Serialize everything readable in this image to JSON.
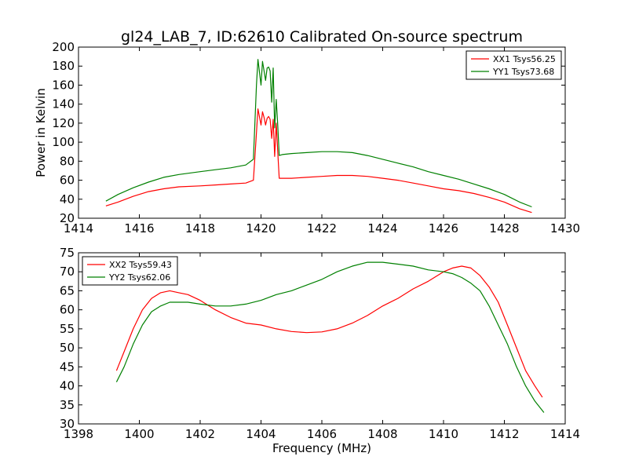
{
  "title": "gl24_LAB_7, ID:62610 Calibrated On-source spectrum",
  "chart_data": [
    {
      "type": "line",
      "xlabel": "",
      "ylabel": "Power in Kelvin",
      "xlim": [
        1414,
        1430
      ],
      "ylim": [
        20,
        200
      ],
      "xticks": [
        "1414",
        "1416",
        "1418",
        "1420",
        "1422",
        "1424",
        "1426",
        "1428",
        "1430"
      ],
      "yticks": [
        "20",
        "40",
        "60",
        "80",
        "100",
        "120",
        "140",
        "160",
        "180",
        "200"
      ],
      "grid": false,
      "legend_position": "top-right",
      "series": [
        {
          "name": "XX1 Tsys56.25",
          "color": "#ff0000",
          "x": [
            1414.9,
            1415.3,
            1415.8,
            1416.3,
            1416.8,
            1417.3,
            1418.0,
            1418.5,
            1419.0,
            1419.5,
            1419.75,
            1419.85,
            1419.9,
            1420.0,
            1420.05,
            1420.1,
            1420.15,
            1420.2,
            1420.25,
            1420.3,
            1420.35,
            1420.4,
            1420.45,
            1420.5,
            1420.55,
            1420.6,
            1420.7,
            1421.0,
            1421.5,
            1422.0,
            1422.5,
            1423.0,
            1423.5,
            1424.0,
            1424.5,
            1425.0,
            1425.5,
            1426.0,
            1426.5,
            1427.0,
            1427.5,
            1428.0,
            1428.5,
            1428.9
          ],
          "values": [
            33,
            37,
            43,
            48,
            51,
            53,
            54,
            55,
            56,
            57,
            60,
            110,
            135,
            118,
            132,
            126,
            118,
            125,
            127,
            124,
            104,
            124,
            85,
            120,
            90,
            62,
            62,
            62,
            63,
            64,
            65,
            65,
            64,
            62,
            60,
            57,
            54,
            51,
            49,
            46,
            42,
            37,
            30,
            26
          ]
        },
        {
          "name": "YY1 Tsys73.68",
          "color": "#008000",
          "x": [
            1414.9,
            1415.3,
            1415.8,
            1416.3,
            1416.8,
            1417.3,
            1418.0,
            1418.5,
            1419.0,
            1419.5,
            1419.75,
            1419.85,
            1419.9,
            1420.0,
            1420.05,
            1420.1,
            1420.15,
            1420.2,
            1420.25,
            1420.3,
            1420.35,
            1420.4,
            1420.45,
            1420.5,
            1420.55,
            1420.6,
            1420.7,
            1421.0,
            1421.5,
            1422.0,
            1422.5,
            1423.0,
            1423.5,
            1424.0,
            1424.5,
            1425.0,
            1425.5,
            1426.0,
            1426.5,
            1427.0,
            1427.5,
            1428.0,
            1428.5,
            1428.9
          ],
          "values": [
            38,
            45,
            52,
            58,
            63,
            66,
            69,
            71,
            73,
            76,
            82,
            160,
            187,
            160,
            185,
            175,
            165,
            178,
            179,
            175,
            142,
            178,
            115,
            145,
            118,
            86,
            87,
            88,
            89,
            90,
            90,
            89,
            86,
            82,
            78,
            74,
            69,
            65,
            61,
            56,
            51,
            45,
            37,
            32
          ]
        }
      ]
    },
    {
      "type": "line",
      "xlabel": "Frequency (MHz)",
      "ylabel": "",
      "xlim": [
        1398,
        1414
      ],
      "ylim": [
        30,
        75
      ],
      "xticks": [
        "1398",
        "1400",
        "1402",
        "1404",
        "1406",
        "1408",
        "1410",
        "1412",
        "1414"
      ],
      "yticks": [
        "30",
        "35",
        "40",
        "45",
        "50",
        "55",
        "60",
        "65",
        "70",
        "75"
      ],
      "grid": false,
      "legend_position": "top-left",
      "series": [
        {
          "name": "XX2 Tsys59.43",
          "color": "#ff0000",
          "x": [
            1399.25,
            1399.5,
            1399.8,
            1400.1,
            1400.4,
            1400.7,
            1401.0,
            1401.3,
            1401.6,
            1402.0,
            1402.5,
            1403.0,
            1403.5,
            1404.0,
            1404.5,
            1405.0,
            1405.5,
            1406.0,
            1406.5,
            1407.0,
            1407.5,
            1408.0,
            1408.5,
            1409.0,
            1409.5,
            1410.0,
            1410.3,
            1410.6,
            1410.9,
            1411.2,
            1411.5,
            1411.8,
            1412.1,
            1412.4,
            1412.7,
            1413.0,
            1413.25
          ],
          "values": [
            44,
            49,
            55,
            60,
            63,
            64.5,
            65,
            64.5,
            64,
            62.5,
            60,
            58,
            56.5,
            56,
            55,
            54.3,
            54,
            54.2,
            55,
            56.5,
            58.5,
            61,
            63,
            65.5,
            67.5,
            70,
            71,
            71.5,
            71,
            69,
            66,
            62,
            56,
            50,
            44,
            40,
            37
          ]
        },
        {
          "name": "YY2 Tsys62.06",
          "color": "#008000",
          "x": [
            1399.25,
            1399.5,
            1399.8,
            1400.1,
            1400.4,
            1400.7,
            1401.0,
            1401.3,
            1401.6,
            1402.0,
            1402.5,
            1403.0,
            1403.5,
            1404.0,
            1404.5,
            1405.0,
            1405.5,
            1406.0,
            1406.5,
            1407.0,
            1407.5,
            1408.0,
            1408.5,
            1409.0,
            1409.5,
            1410.0,
            1410.3,
            1410.6,
            1410.9,
            1411.2,
            1411.5,
            1411.8,
            1412.1,
            1412.4,
            1412.7,
            1413.0,
            1413.3
          ],
          "values": [
            41,
            45,
            51,
            56,
            59.5,
            61,
            62,
            62,
            62,
            61.5,
            61,
            61,
            61.5,
            62.5,
            64,
            65,
            66.5,
            68,
            70,
            71.5,
            72.5,
            72.5,
            72,
            71.5,
            70.5,
            70,
            69.5,
            68.5,
            67,
            65,
            61,
            56,
            51,
            45,
            40,
            36,
            33
          ]
        }
      ]
    }
  ]
}
